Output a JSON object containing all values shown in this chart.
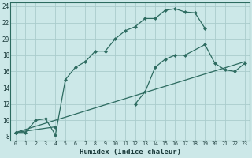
{
  "xlabel": "Humidex (Indice chaleur)",
  "bg_color": "#cce8e8",
  "grid_color": "#aacccc",
  "line_color": "#2d6b60",
  "xlim": [
    -0.5,
    23.5
  ],
  "ylim": [
    7.5,
    24.5
  ],
  "xticks": [
    0,
    1,
    2,
    3,
    4,
    5,
    6,
    7,
    8,
    9,
    10,
    11,
    12,
    13,
    14,
    15,
    16,
    17,
    18,
    19,
    20,
    21,
    22,
    23
  ],
  "yticks": [
    8,
    10,
    12,
    14,
    16,
    18,
    20,
    22,
    24
  ],
  "line1_x": [
    0,
    1,
    2,
    3,
    4,
    5,
    6,
    7,
    8,
    9,
    10,
    11,
    12,
    13,
    14,
    15,
    16,
    17,
    18,
    19
  ],
  "line1_y": [
    8.5,
    8.5,
    10.0,
    10.2,
    8.2,
    15.0,
    16.5,
    17.2,
    18.5,
    18.5,
    20.0,
    21.0,
    21.5,
    22.5,
    22.5,
    23.5,
    23.7,
    23.3,
    23.2,
    21.3
  ],
  "line2_x": [
    0,
    4,
    12,
    13,
    14,
    15,
    16,
    17,
    19,
    20,
    21,
    22,
    23
  ],
  "line2_y": [
    8.5,
    9.2,
    12.0,
    13.5,
    16.5,
    17.5,
    18.0,
    18.0,
    19.3,
    17.0,
    16.2,
    16.0,
    17.0
  ],
  "line2_break": 2,
  "line3_x": [
    0,
    23
  ],
  "line3_y": [
    8.5,
    17.2
  ]
}
